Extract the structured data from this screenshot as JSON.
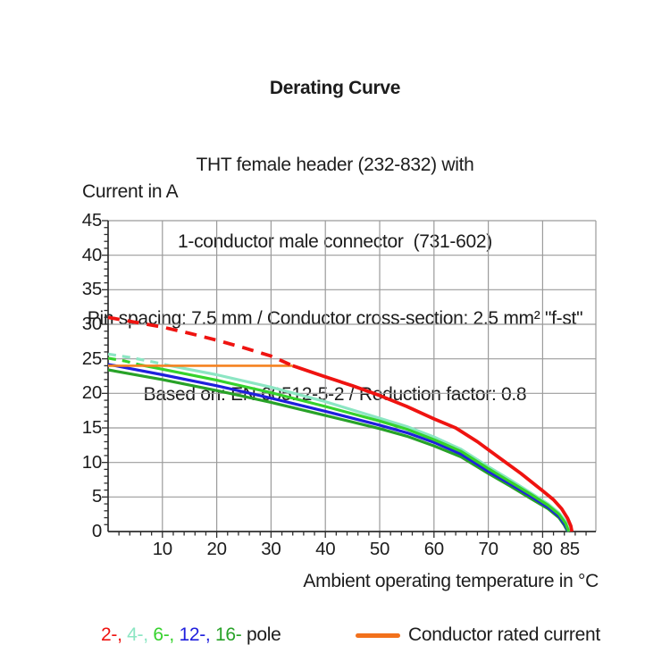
{
  "title": {
    "line1": "Derating Curve",
    "line2": "THT female header (232-832) with",
    "line3": "1-conductor male connector  (731-602)",
    "line4": "Pin spacing: 7.5 mm / Conductor cross-section: 2.5 mm² \"f-st\"",
    "line5": "Based on: EN 60512-5-2 / Reduction factor: 0.8"
  },
  "axes": {
    "ylabel": "Current in A",
    "xlabel": "Ambient operating temperature in °C"
  },
  "chart_data": {
    "type": "line",
    "title": "Derating Curve",
    "xlabel": "Ambient operating temperature in °C",
    "ylabel": "Current in A",
    "xlim": [
      0,
      89.8
    ],
    "ylim": [
      0,
      45
    ],
    "x_major_ticks": [
      10,
      20,
      30,
      40,
      50,
      60,
      70,
      80,
      85
    ],
    "x_minor_step": 2,
    "y_major_ticks": [
      0,
      5,
      10,
      15,
      20,
      25,
      30,
      35,
      40,
      45
    ],
    "y_minor_step": 1,
    "grid": {
      "on": true,
      "x_step": 10,
      "y_step": 5,
      "color": "#9b9b9b"
    },
    "axis_color": "#2e2e2e",
    "note": "dashed segments indicate current above the conductor rated current (24 A)",
    "series": [
      {
        "name": "4-pole",
        "color": "#8ce6c3",
        "width": 3.2,
        "dashed_points": [
          [
            0,
            25.7
          ],
          [
            4,
            25.2
          ],
          [
            8,
            24.6
          ],
          [
            11.5,
            24
          ]
        ],
        "solid_points": [
          [
            11.5,
            24
          ],
          [
            20,
            22.7
          ],
          [
            30,
            20.9
          ],
          [
            40,
            18.8
          ],
          [
            50,
            16.4
          ],
          [
            55,
            15.2
          ],
          [
            60,
            13.7
          ],
          [
            65,
            11.9
          ],
          [
            70,
            9.4
          ],
          [
            74,
            7.5
          ],
          [
            78,
            5.5
          ],
          [
            81,
            4.0
          ],
          [
            83,
            2.7
          ],
          [
            84.3,
            1.4
          ],
          [
            84.9,
            0
          ]
        ]
      },
      {
        "name": "16-pole",
        "color": "#28a228",
        "width": 3.2,
        "dashed_points": [],
        "solid_points": [
          [
            0,
            23.4
          ],
          [
            10,
            22.0
          ],
          [
            20,
            20.4
          ],
          [
            30,
            18.7
          ],
          [
            40,
            16.8
          ],
          [
            50,
            14.9
          ],
          [
            55,
            13.8
          ],
          [
            60,
            12.4
          ],
          [
            65,
            10.8
          ],
          [
            70,
            8.4
          ],
          [
            74,
            6.6
          ],
          [
            78,
            4.7
          ],
          [
            81,
            3.3
          ],
          [
            83,
            2.0
          ],
          [
            84,
            0.9
          ],
          [
            84.6,
            0
          ]
        ]
      },
      {
        "name": "12-pole",
        "color": "#1f1fdd",
        "width": 3.2,
        "dashed_points": [],
        "solid_points": [
          [
            0,
            24.2
          ],
          [
            10,
            22.7
          ],
          [
            20,
            21.1
          ],
          [
            30,
            19.3
          ],
          [
            40,
            17.4
          ],
          [
            50,
            15.4
          ],
          [
            55,
            14.3
          ],
          [
            60,
            12.9
          ],
          [
            65,
            11.2
          ],
          [
            70,
            8.7
          ],
          [
            74,
            6.9
          ],
          [
            78,
            5.0
          ],
          [
            81,
            3.5
          ],
          [
            83,
            2.2
          ],
          [
            84.1,
            1.0
          ],
          [
            84.7,
            0
          ]
        ]
      },
      {
        "name": "6-pole",
        "color": "#35d22c",
        "width": 3.2,
        "dashed_points": [
          [
            0,
            25.1
          ],
          [
            3,
            24.7
          ],
          [
            6,
            24.1
          ]
        ],
        "solid_points": [
          [
            6,
            24.1
          ],
          [
            10,
            23.5
          ],
          [
            20,
            21.9
          ],
          [
            30,
            20.1
          ],
          [
            40,
            18.1
          ],
          [
            50,
            16.0
          ],
          [
            55,
            14.8
          ],
          [
            60,
            13.3
          ],
          [
            65,
            11.6
          ],
          [
            70,
            9.1
          ],
          [
            74,
            7.2
          ],
          [
            78,
            5.3
          ],
          [
            81,
            3.8
          ],
          [
            83,
            2.5
          ],
          [
            84.2,
            1.2
          ],
          [
            84.8,
            0
          ]
        ]
      },
      {
        "name": "2-pole",
        "color": "#ef1310",
        "width": 3.8,
        "dashed_points": [
          [
            0,
            31
          ],
          [
            5,
            30.3
          ],
          [
            10,
            29.6
          ],
          [
            15,
            28.7
          ],
          [
            20,
            27.7
          ],
          [
            25,
            26.6
          ],
          [
            30,
            25.4
          ],
          [
            34,
            24
          ]
        ],
        "solid_points": [
          [
            34,
            24
          ],
          [
            40,
            22.4
          ],
          [
            45,
            21.1
          ],
          [
            50,
            19.7
          ],
          [
            55,
            18.1
          ],
          [
            60,
            16.3
          ],
          [
            64,
            15.0
          ],
          [
            68,
            13.0
          ],
          [
            72,
            10.7
          ],
          [
            76,
            8.4
          ],
          [
            80,
            5.9
          ],
          [
            82,
            4.6
          ],
          [
            83.5,
            3.3
          ],
          [
            84.6,
            1.9
          ],
          [
            85.2,
            0.8
          ],
          [
            85.4,
            0
          ]
        ]
      }
    ],
    "rated_current_line": {
      "label": "Conductor rated current",
      "y": 24,
      "x_start": 0,
      "x_end": 34,
      "color": "#f58220",
      "width": 2.6
    }
  },
  "legend": {
    "poles": [
      {
        "label": "2-,",
        "color": "#ef1310"
      },
      {
        "label": "4-,",
        "color": "#8ce6c3"
      },
      {
        "label": "6-,",
        "color": "#35d22c"
      },
      {
        "label": "12-,",
        "color": "#1f1fdd"
      },
      {
        "label": "16-",
        "color": "#28a228"
      }
    ],
    "poles_suffix": " pole",
    "rated_label": "Conductor rated current",
    "rated_swatch_color": "#f2711c"
  }
}
